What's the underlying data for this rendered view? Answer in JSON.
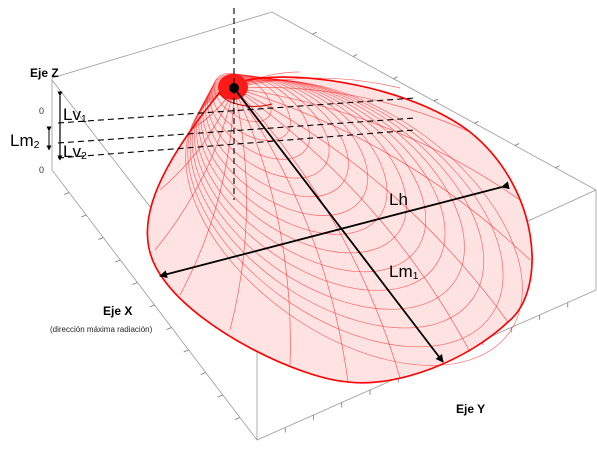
{
  "axes": {
    "z_label": "Eje Z",
    "x_label": "Eje X",
    "x_note": "(dirección máxima radiación)",
    "y_label": "Eje Y",
    "z_ticks": [
      "0",
      "0"
    ]
  },
  "dimensions": {
    "lh": "Lh",
    "lm1_base": "Lm",
    "lm1_sub": "1",
    "lm2_base": "Lm",
    "lm2_sub": "2",
    "lv1_base": "Lv",
    "lv1_sub": "1",
    "lv2_base": "Lv",
    "lv2_sub": "2"
  },
  "colors": {
    "lobe": "#ff0000",
    "box": "#9a9a9a",
    "arrow": "#000000"
  }
}
